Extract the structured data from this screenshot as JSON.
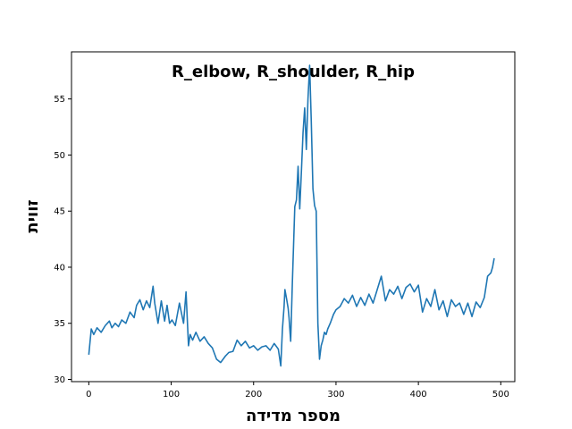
{
  "chart_data": {
    "type": "line",
    "title": "R_elbow, R_shoulder, R_hip",
    "xlabel": "מספר מדידה",
    "ylabel": "זווית",
    "xlim": [
      -21,
      517
    ],
    "ylim": [
      29.8,
      59.2
    ],
    "x_ticks": [
      0,
      100,
      200,
      300,
      400,
      500
    ],
    "y_ticks": [
      30,
      35,
      40,
      45,
      50,
      55
    ],
    "grid": false,
    "series_color": "#1f77b4",
    "series": [
      {
        "x": [
          0,
          3,
          6,
          10,
          15,
          20,
          25,
          28,
          32,
          36,
          40,
          45,
          50,
          55,
          58,
          62,
          66,
          70,
          74,
          78,
          80,
          84,
          88,
          92,
          95,
          98,
          101,
          105,
          110,
          115,
          118,
          121,
          123,
          126,
          130,
          135,
          140,
          145,
          150,
          155,
          160,
          163,
          166,
          170,
          175,
          180,
          185,
          190,
          195,
          200,
          205,
          210,
          215,
          220,
          225,
          230,
          233,
          235,
          237,
          238,
          240,
          242,
          243,
          245,
          247,
          250,
          252,
          254,
          256,
          258,
          260,
          262,
          264,
          266,
          268,
          270,
          272,
          274,
          276,
          278,
          280,
          282,
          284,
          286,
          288,
          290,
          293,
          297,
          300,
          305,
          310,
          315,
          320,
          325,
          330,
          335,
          340,
          345,
          350,
          355,
          360,
          365,
          370,
          375,
          380,
          385,
          390,
          395,
          400,
          405,
          410,
          415,
          420,
          425,
          430,
          435,
          440,
          445,
          450,
          455,
          460,
          465,
          470,
          475,
          480,
          484,
          488,
          490,
          492
        ],
        "values": [
          32.2,
          34.5,
          34.0,
          34.6,
          34.2,
          34.8,
          35.2,
          34.6,
          35.0,
          34.7,
          35.3,
          35.0,
          36.0,
          35.5,
          36.6,
          37.1,
          36.2,
          37.0,
          36.4,
          38.3,
          36.8,
          35.0,
          37.0,
          35.2,
          36.6,
          35.0,
          35.3,
          34.8,
          36.8,
          35.0,
          37.8,
          33.0,
          34.0,
          33.5,
          34.2,
          33.4,
          33.8,
          33.2,
          32.8,
          31.8,
          31.5,
          31.8,
          32.1,
          32.4,
          32.5,
          33.5,
          33.0,
          33.4,
          32.8,
          33.0,
          32.6,
          32.9,
          33.0,
          32.6,
          33.2,
          32.7,
          31.2,
          34.5,
          36.5,
          38.0,
          37.2,
          36.3,
          35.5,
          33.4,
          38.5,
          45.4,
          46.0,
          49.0,
          45.2,
          48.5,
          52.0,
          54.2,
          50.5,
          55.0,
          58.0,
          53.0,
          47.0,
          45.5,
          45.0,
          35.0,
          31.8,
          33.0,
          33.5,
          34.2,
          34.0,
          34.5,
          35.0,
          35.8,
          36.2,
          36.5,
          37.2,
          36.8,
          37.5,
          36.5,
          37.3,
          36.6,
          37.6,
          36.8,
          38.0,
          39.2,
          37.0,
          38.0,
          37.6,
          38.3,
          37.2,
          38.2,
          38.5,
          37.8,
          38.4,
          36.0,
          37.2,
          36.5,
          38.0,
          36.2,
          37.0,
          35.6,
          37.1,
          36.5,
          36.8,
          35.8,
          36.8,
          35.6,
          36.9,
          36.4,
          37.3,
          39.2,
          39.5,
          40.0,
          40.8
        ]
      }
    ]
  }
}
